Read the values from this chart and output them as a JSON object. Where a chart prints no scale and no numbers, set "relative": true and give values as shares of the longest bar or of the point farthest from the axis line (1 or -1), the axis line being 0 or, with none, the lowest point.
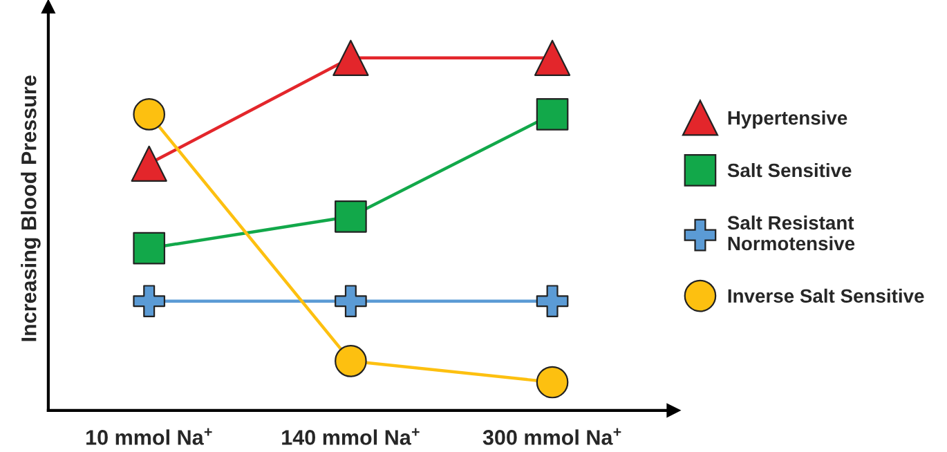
{
  "chart_data": {
    "type": "line",
    "relative": true,
    "ylabel": "Increasing Blood Pressure",
    "categories": [
      "10 mmol Na$^{+}$",
      "140 mmol Na$^{+}$",
      "300 mmol Na$^{+}$"
    ],
    "series": [
      {
        "name": "Hypertensive",
        "color": "#e3262b",
        "marker": "triangle",
        "values": [
          0.7,
          1,
          1
        ]
      },
      {
        "name": "Salt Sensitive",
        "color": "#12a84a",
        "marker": "square",
        "values": [
          0.46,
          0.55,
          0.84
        ]
      },
      {
        "name": "Salt Resistant\nNormotensive",
        "color": "#5b9bd5",
        "marker": "cross",
        "values": [
          0.31,
          0.31,
          0.31
        ]
      },
      {
        "name": "Inverse Salt Sensitive",
        "color": "#fdc010",
        "marker": "circle",
        "values": [
          0.84,
          0.14,
          0.08
        ]
      }
    ],
    "legend": "right",
    "grid": false,
    "line_style": "solid"
  }
}
